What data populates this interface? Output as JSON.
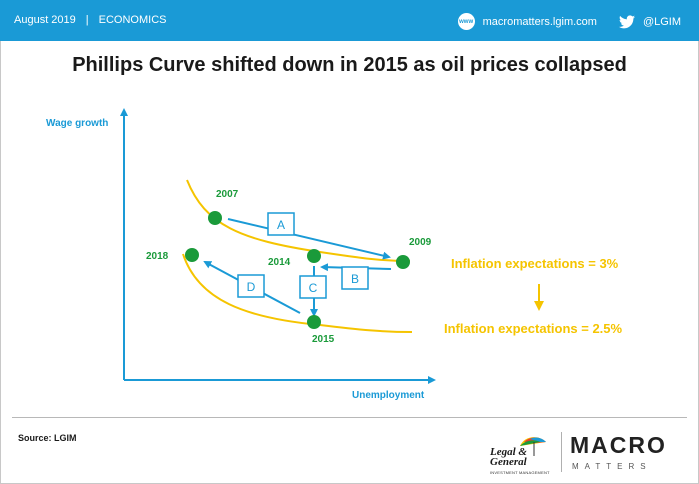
{
  "header": {
    "date": "August 2019",
    "separator": "|",
    "section": "ECONOMICS",
    "website": "macromatters.lgim.com",
    "twitter_handle": "@LGIM",
    "globe_icon_text": "www",
    "bar_color": "#1a9ad6"
  },
  "title": "Phillips Curve shifted down in 2015 as oil prices collapsed",
  "diagram": {
    "axis_y_label": "Wage growth",
    "axis_x_label": "Unemployment",
    "axis_color": "#1a9ad6",
    "curve_color": "#f5c400",
    "point_color": "#1a9a3a",
    "arrow_color": "#1a9ad6",
    "points": {
      "p2007": "2007",
      "p2009": "2009",
      "p2014": "2014",
      "p2015": "2015",
      "p2018": "2018"
    },
    "steps": {
      "a": "A",
      "b": "B",
      "c": "C",
      "d": "D"
    },
    "expectations_high": "Inflation expectations = 3%",
    "expectations_low": "Inflation expectations = 2.5%"
  },
  "footer": {
    "source": "Source: LGIM",
    "lg_name_line1": "Legal &",
    "lg_name_line2": "General",
    "lg_sub": "INVESTMENT MANAGEMENT",
    "macro": "MACRO",
    "matters": "MATTERS"
  }
}
